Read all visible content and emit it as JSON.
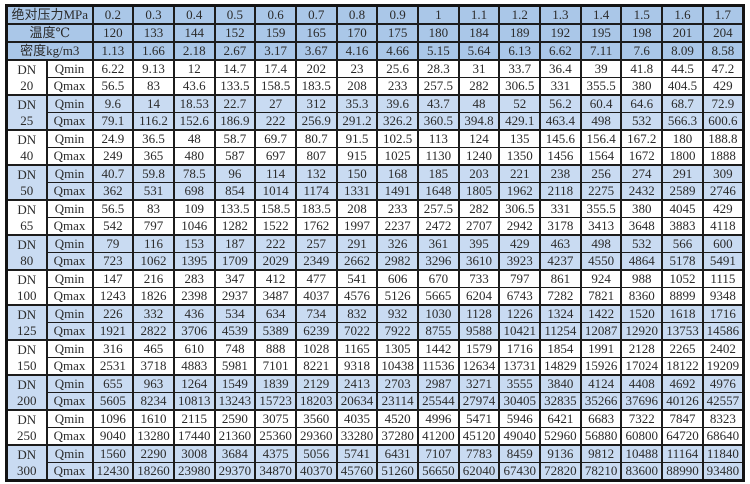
{
  "colors": {
    "header_bg": "#aac7e8",
    "alt_row_bg": "#c9dbf2",
    "grid_border": "#1c1c1c",
    "text": "#2b2b2b",
    "page_bg": "#ffffff"
  },
  "table": {
    "row_labels": {
      "pressure": "绝对压力MPa",
      "temperature": "温度℃",
      "density": "密度kg/m3"
    },
    "dn_label": "DN",
    "qmin_label": "Qmin",
    "qmax_label": "Qmax",
    "pressures": [
      "0.2",
      "0.3",
      "0.4",
      "0.5",
      "0.6",
      "0.7",
      "0.8",
      "0.9",
      "1",
      "1.1",
      "1.2",
      "1.3",
      "1.4",
      "1.5",
      "1.6",
      "1.7"
    ],
    "temperatures": [
      "120",
      "133",
      "144",
      "152",
      "159",
      "165",
      "170",
      "175",
      "180",
      "184",
      "189",
      "192",
      "195",
      "198",
      "201",
      "204"
    ],
    "densities": [
      "1.13",
      "1.66",
      "2.18",
      "2.67",
      "3.17",
      "3.67",
      "4.16",
      "4.66",
      "5.15",
      "5.64",
      "6.13",
      "6.62",
      "7.11",
      "7.6",
      "8.09",
      "8.58"
    ],
    "blocks": [
      {
        "dn": "20",
        "qmin": [
          "6.22",
          "9.13",
          "12",
          "14.7",
          "17.4",
          "202",
          "23",
          "25.6",
          "28.3",
          "31",
          "33.7",
          "36.4",
          "39",
          "41.8",
          "44.5",
          "47.2"
        ],
        "qmax": [
          "56.5",
          "83",
          "43.6",
          "133.5",
          "158.5",
          "183.5",
          "208",
          "233",
          "257.5",
          "282",
          "306.5",
          "331",
          "355.5",
          "380",
          "404.5",
          "429"
        ]
      },
      {
        "dn": "25",
        "qmin": [
          "9.6",
          "14",
          "18.53",
          "22.7",
          "27",
          "312",
          "35.3",
          "39.6",
          "43.7",
          "48",
          "52",
          "56.2",
          "60.4",
          "64.6",
          "68.7",
          "72.9"
        ],
        "qmax": [
          "79.1",
          "116.2",
          "152.6",
          "186.9",
          "222",
          "256.9",
          "291.2",
          "326.2",
          "360.5",
          "394.8",
          "429.1",
          "463.4",
          "498",
          "532",
          "566.3",
          "600.6"
        ]
      },
      {
        "dn": "40",
        "qmin": [
          "24.9",
          "36.5",
          "48",
          "58.7",
          "69.7",
          "80.7",
          "91.5",
          "102.5",
          "113",
          "124",
          "135",
          "145.6",
          "156.4",
          "167.2",
          "180",
          "188.8"
        ],
        "qmax": [
          "249",
          "365",
          "480",
          "587",
          "697",
          "807",
          "915",
          "1025",
          "1130",
          "1240",
          "1350",
          "1456",
          "1564",
          "1672",
          "1800",
          "1888"
        ]
      },
      {
        "dn": "50",
        "qmin": [
          "40.7",
          "59.8",
          "78.5",
          "96",
          "114",
          "132",
          "150",
          "168",
          "185",
          "203",
          "221",
          "238",
          "256",
          "274",
          "291",
          "309"
        ],
        "qmax": [
          "362",
          "531",
          "698",
          "854",
          "1014",
          "1174",
          "1331",
          "1491",
          "1648",
          "1805",
          "1962",
          "2118",
          "2275",
          "2432",
          "2589",
          "2746"
        ]
      },
      {
        "dn": "65",
        "qmin": [
          "56.5",
          "83",
          "109",
          "133.5",
          "158.5",
          "183.5",
          "208",
          "233",
          "257.5",
          "282",
          "306.5",
          "331",
          "355.5",
          "380",
          "4045",
          "429"
        ],
        "qmax": [
          "542",
          "797",
          "1046",
          "1282",
          "1522",
          "1762",
          "1997",
          "2237",
          "2472",
          "2707",
          "2942",
          "3178",
          "3413",
          "3648",
          "3883",
          "4118"
        ]
      },
      {
        "dn": "80",
        "qmin": [
          "79",
          "116",
          "153",
          "187",
          "222",
          "257",
          "291",
          "326",
          "361",
          "395",
          "429",
          "463",
          "498",
          "532",
          "566",
          "600"
        ],
        "qmax": [
          "723",
          "1062",
          "1395",
          "1709",
          "2029",
          "2349",
          "2662",
          "2982",
          "3296",
          "3610",
          "3923",
          "4237",
          "4550",
          "4864",
          "5178",
          "5491"
        ]
      },
      {
        "dn": "100",
        "qmin": [
          "147",
          "216",
          "283",
          "347",
          "412",
          "477",
          "541",
          "606",
          "670",
          "733",
          "797",
          "861",
          "924",
          "988",
          "1052",
          "1115"
        ],
        "qmax": [
          "1243",
          "1826",
          "2398",
          "2937",
          "3487",
          "4037",
          "4576",
          "5126",
          "5665",
          "6204",
          "6743",
          "7282",
          "7821",
          "8360",
          "8899",
          "9348"
        ]
      },
      {
        "dn": "125",
        "qmin": [
          "226",
          "332",
          "436",
          "534",
          "634",
          "734",
          "832",
          "932",
          "1030",
          "1128",
          "1226",
          "1324",
          "1422",
          "1520",
          "1618",
          "1716"
        ],
        "qmax": [
          "1921",
          "2822",
          "3706",
          "4539",
          "5389",
          "6239",
          "7022",
          "7922",
          "8755",
          "9588",
          "10421",
          "11254",
          "12087",
          "12920",
          "13753",
          "14586"
        ]
      },
      {
        "dn": "150",
        "qmin": [
          "316",
          "465",
          "610",
          "748",
          "888",
          "1028",
          "1165",
          "1305",
          "1442",
          "1579",
          "1716",
          "1854",
          "1991",
          "2128",
          "2265",
          "2402"
        ],
        "qmax": [
          "2531",
          "3718",
          "4883",
          "5981",
          "7101",
          "8221",
          "9318",
          "10438",
          "11536",
          "12634",
          "13731",
          "14829",
          "15926",
          "17024",
          "18122",
          "19209"
        ]
      },
      {
        "dn": "200",
        "qmin": [
          "655",
          "963",
          "1264",
          "1549",
          "1839",
          "2129",
          "2413",
          "2703",
          "2987",
          "3271",
          "3555",
          "3840",
          "4124",
          "4408",
          "4692",
          "4976"
        ],
        "qmax": [
          "5605",
          "8234",
          "10813",
          "13243",
          "15723",
          "18203",
          "20634",
          "23114",
          "25544",
          "27974",
          "30405",
          "32835",
          "35266",
          "37696",
          "40126",
          "42557"
        ]
      },
      {
        "dn": "250",
        "qmin": [
          "1096",
          "1610",
          "2115",
          "2590",
          "3075",
          "3560",
          "4035",
          "4520",
          "4996",
          "5471",
          "5946",
          "6421",
          "6683",
          "7322",
          "7847",
          "8323"
        ],
        "qmax": [
          "9040",
          "13280",
          "17440",
          "21360",
          "25360",
          "29360",
          "33280",
          "37280",
          "41200",
          "45120",
          "49040",
          "52960",
          "56880",
          "60800",
          "64720",
          "68640"
        ]
      },
      {
        "dn": "300",
        "qmin": [
          "1560",
          "2290",
          "3008",
          "3684",
          "4375",
          "5056",
          "5741",
          "6431",
          "7107",
          "7783",
          "8459",
          "9136",
          "9812",
          "10488",
          "11164",
          "11840"
        ],
        "qmax": [
          "12430",
          "18260",
          "23980",
          "29370",
          "34870",
          "40370",
          "45760",
          "51260",
          "56650",
          "62040",
          "67430",
          "72820",
          "78210",
          "83600",
          "88990",
          "93480"
        ]
      }
    ]
  }
}
